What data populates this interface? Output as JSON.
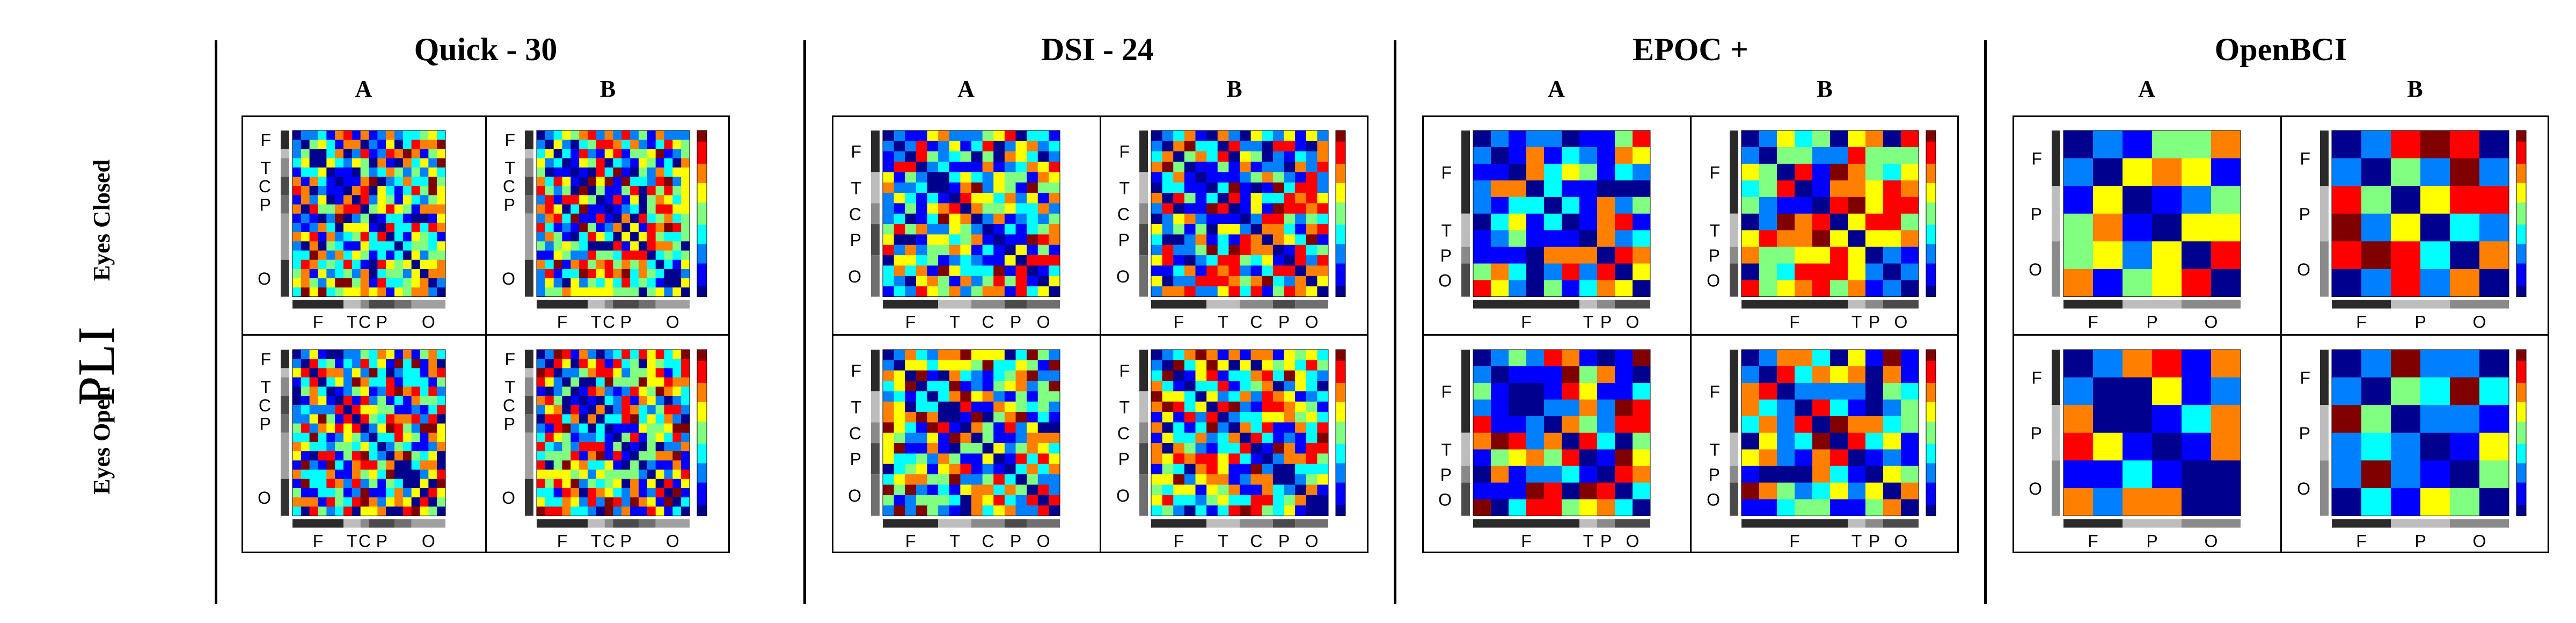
{
  "y_axis_label": "PLI",
  "conditions": [
    "Eyes Closed",
    "Eyes Open"
  ],
  "subject_labels": [
    "A",
    "B"
  ],
  "colormap": [
    "#00008f",
    "#0000ff",
    "#0080ff",
    "#00ffff",
    "#80ff80",
    "#ffff00",
    "#ff8000",
    "#ff0000",
    "#800000"
  ],
  "devices": [
    {
      "name": "Quick - 30",
      "n": 18,
      "side_groups": [
        {
          "label": "F",
          "w": 2
        },
        {
          "label": "",
          "w": 1
        },
        {
          "label": "T",
          "w": 2
        },
        {
          "label": "C",
          "w": 2
        },
        {
          "label": "P",
          "w": 2
        },
        {
          "label": "",
          "w": 5
        },
        {
          "label": "O",
          "w": 4
        }
      ],
      "bottom_groups": [
        {
          "label": "F",
          "w": 6
        },
        {
          "label": "T",
          "w": 2
        },
        {
          "label": "C",
          "w": 1
        },
        {
          "label": "P",
          "w": 3
        },
        {
          "label": "",
          "w": 2
        },
        {
          "label": "O",
          "w": 4
        }
      ],
      "seeds": [
        11,
        23,
        37,
        41
      ]
    },
    {
      "name": "DSI - 24",
      "n": 16,
      "side_groups": [
        {
          "label": "F",
          "w": 4
        },
        {
          "label": "T",
          "w": 3
        },
        {
          "label": "C",
          "w": 2
        },
        {
          "label": "P",
          "w": 3
        },
        {
          "label": "O",
          "w": 4
        }
      ],
      "bottom_groups": [
        {
          "label": "F",
          "w": 5
        },
        {
          "label": "T",
          "w": 3
        },
        {
          "label": "C",
          "w": 3
        },
        {
          "label": "P",
          "w": 2
        },
        {
          "label": "O",
          "w": 3
        }
      ],
      "seeds": [
        53,
        67,
        71,
        89
      ]
    },
    {
      "name": "EPOC +",
      "n": 10,
      "side_groups": [
        {
          "label": "F",
          "w": 5
        },
        {
          "label": "T",
          "w": 2
        },
        {
          "label": "P",
          "w": 1
        },
        {
          "label": "O",
          "w": 2
        }
      ],
      "bottom_groups": [
        {
          "label": "F",
          "w": 6
        },
        {
          "label": "T",
          "w": 1
        },
        {
          "label": "P",
          "w": 1
        },
        {
          "label": "O",
          "w": 2
        }
      ],
      "seeds": [
        97,
        103,
        113,
        127
      ]
    },
    {
      "name": "OpenBCI",
      "n": 6,
      "side_groups": [
        {
          "label": "F",
          "w": 2
        },
        {
          "label": "P",
          "w": 2
        },
        {
          "label": "O",
          "w": 2
        }
      ],
      "bottom_groups": [
        {
          "label": "F",
          "w": 2
        },
        {
          "label": "P",
          "w": 2
        },
        {
          "label": "O",
          "w": 2
        }
      ],
      "seeds": [
        131,
        139,
        149,
        151
      ]
    }
  ]
}
